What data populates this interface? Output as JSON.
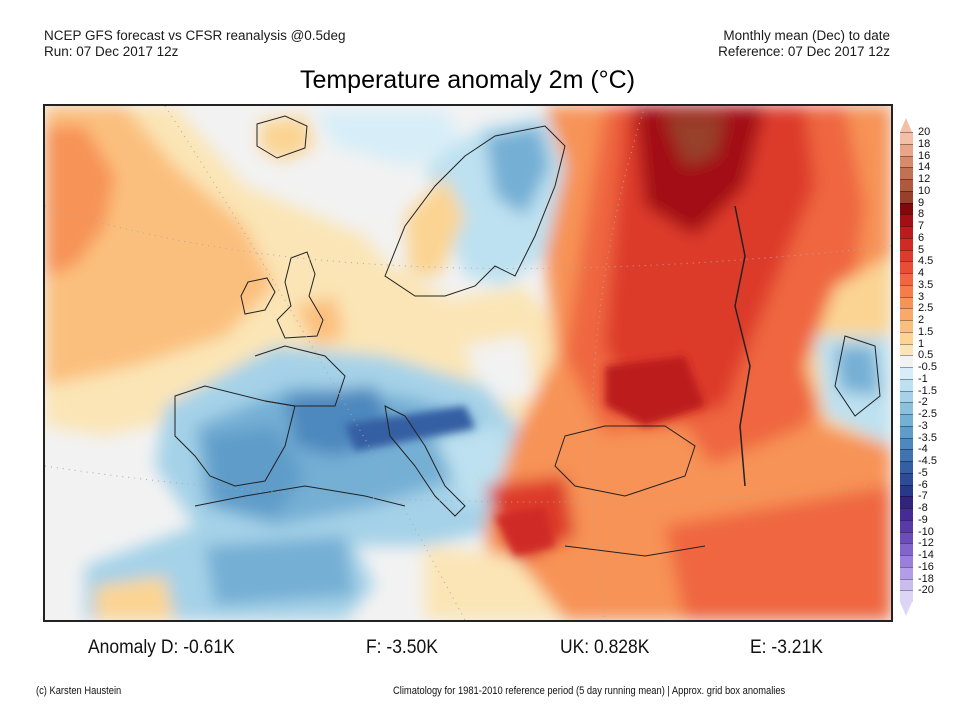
{
  "header": {
    "left_line1": "NCEP GFS forecast vs CFSR reanalysis @0.5deg",
    "left_line2": "Run: 07 Dec 2017 12z",
    "right_line1": "Monthly mean (Dec) to date",
    "right_line2": "Reference: 07 Dec 2017 12z"
  },
  "title": "Temperature anomaly 2m (°C)",
  "map": {
    "region": "Europe, North Atlantic, North Africa, Middle East",
    "variable": "2m temperature anomaly",
    "units": "°C",
    "patterns": [
      {
        "area": "North Atlantic (west)",
        "anomaly_range": "1 to 3"
      },
      {
        "area": "Iceland / Norwegian Sea",
        "anomaly_range": "-1 to 1"
      },
      {
        "area": "Scandinavia interior",
        "anomaly_range": "-3 to 0"
      },
      {
        "area": "British Isles",
        "anomaly_range": "-0.5 to 2"
      },
      {
        "area": "Iberia / France / Western Mediterranean",
        "anomaly_range": "-5 to -1.5"
      },
      {
        "area": "Alps",
        "anomaly_range": "-6 to -4"
      },
      {
        "area": "Northwest Africa",
        "anomaly_range": "-3 to 1"
      },
      {
        "area": "Central Europe / Balkans west",
        "anomaly_range": "-1.5 to 1"
      },
      {
        "area": "Western Russia north",
        "anomaly_range": "6 to 12"
      },
      {
        "area": "Western Russia / Ukraine",
        "anomaly_range": "4 to 7"
      },
      {
        "area": "Black Sea / Turkey / Middle East",
        "anomaly_range": "2.5 to 5"
      },
      {
        "area": "Caspian Sea",
        "anomaly_range": "-2 to 0.5"
      }
    ]
  },
  "colorbar": {
    "levels": [
      {
        "label": "20",
        "color": "#f3c0a7"
      },
      {
        "label": "18",
        "color": "#e8a588"
      },
      {
        "label": "16",
        "color": "#d68c6c"
      },
      {
        "label": "14",
        "color": "#c27254"
      },
      {
        "label": "12",
        "color": "#ad5a3e"
      },
      {
        "label": "10",
        "color": "#97412c"
      },
      {
        "label": "9",
        "color": "#7e0a0c"
      },
      {
        "label": "8",
        "color": "#a30f15"
      },
      {
        "label": "7",
        "color": "#bc1a1f"
      },
      {
        "label": "6",
        "color": "#cf2a26"
      },
      {
        "label": "5",
        "color": "#dd3b2c"
      },
      {
        "label": "4.5",
        "color": "#e84e35"
      },
      {
        "label": "4",
        "color": "#ef6640"
      },
      {
        "label": "3.5",
        "color": "#f47d4b"
      },
      {
        "label": "3",
        "color": "#f79357"
      },
      {
        "label": "2.5",
        "color": "#f9aa69"
      },
      {
        "label": "2",
        "color": "#fbbf7d"
      },
      {
        "label": "1.5",
        "color": "#fdd493"
      },
      {
        "label": "1",
        "color": "#fbe5b6"
      },
      {
        "label": "0.5",
        "color": "#f2f2f2"
      },
      {
        "label": "-0.5",
        "color": "#d7eef8"
      },
      {
        "label": "-1",
        "color": "#bde1f0"
      },
      {
        "label": "-1.5",
        "color": "#a5d2e8"
      },
      {
        "label": "-2",
        "color": "#8cc1de"
      },
      {
        "label": "-2.5",
        "color": "#74afd4"
      },
      {
        "label": "-3",
        "color": "#5f9cc9"
      },
      {
        "label": "-3.5",
        "color": "#4d88be"
      },
      {
        "label": "-4",
        "color": "#3f73b1"
      },
      {
        "label": "-4.5",
        "color": "#355fa3"
      },
      {
        "label": "-5",
        "color": "#2d4b96"
      },
      {
        "label": "-6",
        "color": "#273a89"
      },
      {
        "label": "-7",
        "color": "#32237e"
      },
      {
        "label": "-8",
        "color": "#472b94"
      },
      {
        "label": "-9",
        "color": "#5a3aa8"
      },
      {
        "label": "-10",
        "color": "#6d4dba"
      },
      {
        "label": "-12",
        "color": "#8264cb"
      },
      {
        "label": "-14",
        "color": "#9b80da"
      },
      {
        "label": "-16",
        "color": "#b39de6"
      },
      {
        "label": "-18",
        "color": "#cbbcf0"
      },
      {
        "label": "-20",
        "color": "#ddd5f6"
      }
    ],
    "top_extend_color": "#f3c0a7",
    "bottom_extend_color": "#ddd5f6"
  },
  "stats": {
    "d": "Anomaly D: -0.61K",
    "f": "F: -3.50K",
    "uk": "UK: 0.828K",
    "e": "E: -3.21K"
  },
  "footer": {
    "credit": "(c) Karsten Haustein",
    "note": "Climatology for 1981-2010 reference period (5 day running mean) | Approx. grid box anomalies"
  }
}
